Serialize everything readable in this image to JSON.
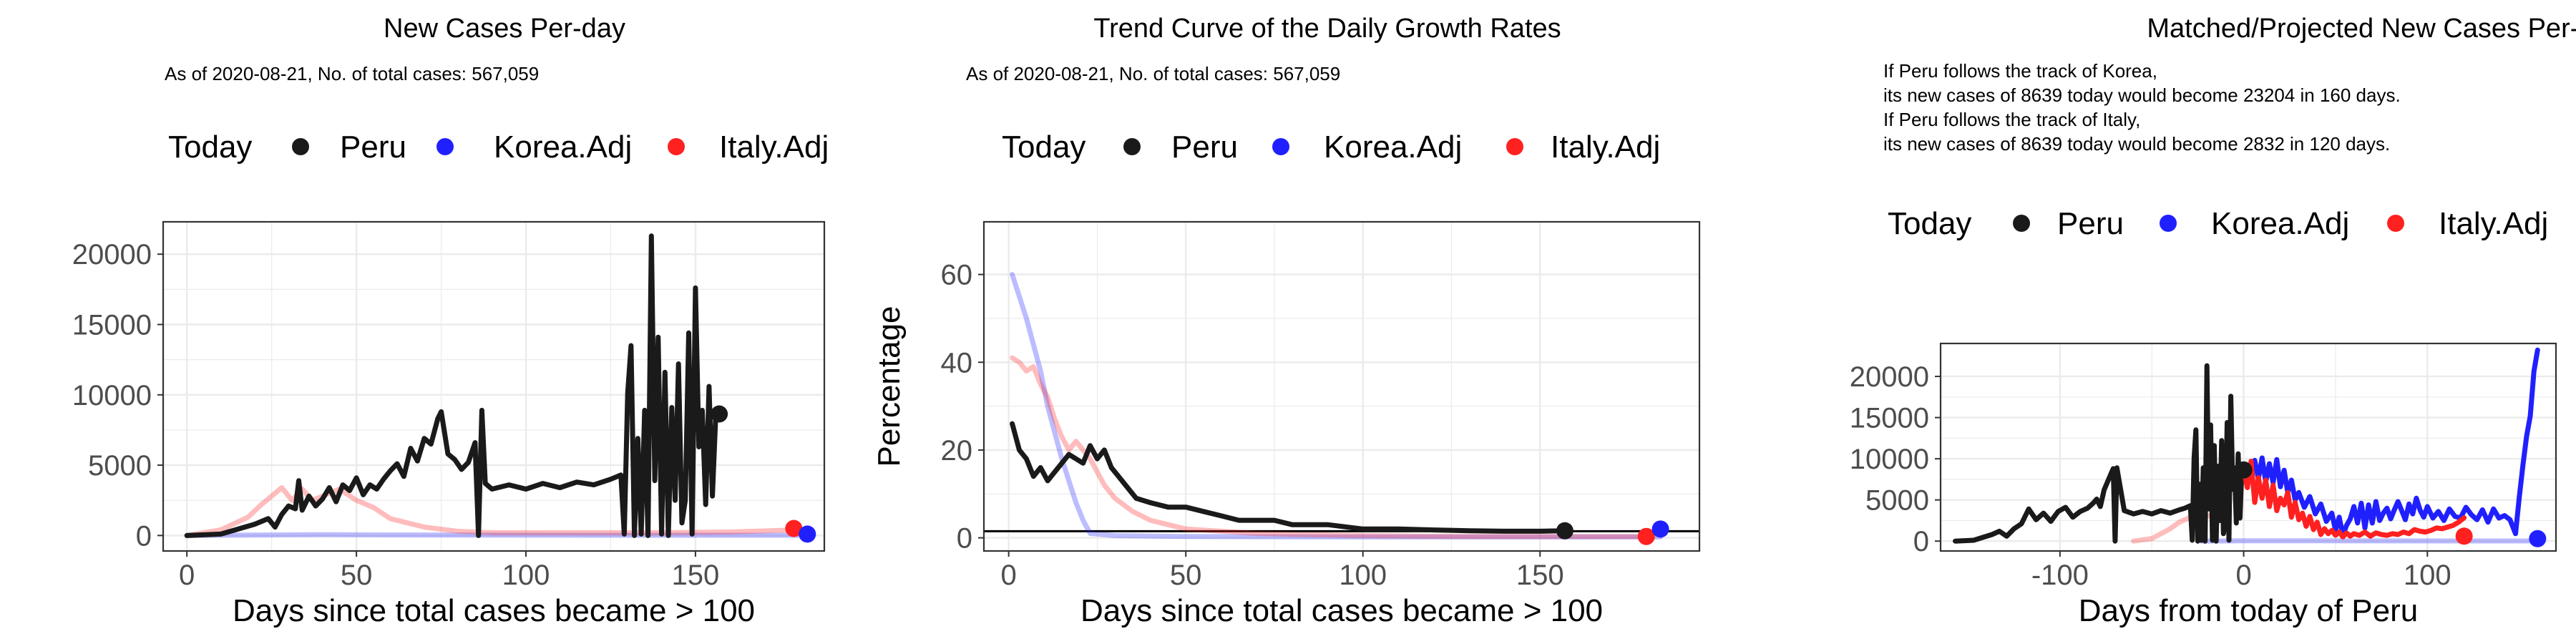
{
  "colors": {
    "peru": "#1a1a1a",
    "korea": "#2020ff",
    "italy": "#ff2020",
    "grid": "#ebebeb",
    "panel_border": "#333333"
  },
  "chart_data": [
    {
      "type": "line",
      "title": "New Cases Per-day",
      "subtitle": [
        "As of 2020-08-21, No. of total cases: 567,059"
      ],
      "legend": {
        "title": "Today",
        "entries": [
          "Peru",
          "Korea.Adj",
          "Italy.Adj"
        ],
        "placement": "top"
      },
      "xlabel": "Days since total cases became > 100",
      "ylabel": "",
      "xlim": [
        -7,
        188
      ],
      "ylim": [
        -1100,
        22300
      ],
      "xticks": [
        0,
        50,
        100,
        150
      ],
      "xtick_labels": [
        "0",
        "50",
        "100",
        "150"
      ],
      "yticks": [
        0,
        5000,
        10000,
        15000,
        20000
      ],
      "ytick_labels": [
        "0",
        "5000",
        "10000",
        "15000",
        "20000"
      ],
      "grid": true,
      "series": [
        {
          "name": "Korea.Adj",
          "color": "#2020ff",
          "opacity": 0.3,
          "x": [
            0,
            20,
            40,
            60,
            80,
            100,
            120,
            140,
            160,
            183
          ],
          "y": [
            0,
            30,
            60,
            40,
            30,
            25,
            20,
            20,
            20,
            20
          ]
        },
        {
          "name": "Italy.Adj",
          "color": "#ff2020",
          "opacity": 0.3,
          "x": [
            0,
            10,
            18,
            22,
            25,
            28,
            31,
            34,
            37,
            40,
            45,
            50,
            55,
            60,
            70,
            80,
            90,
            100,
            120,
            140,
            160,
            180
          ],
          "y": [
            0,
            400,
            1300,
            2200,
            2800,
            3400,
            2500,
            3300,
            2500,
            2800,
            3300,
            2500,
            2000,
            1200,
            600,
            300,
            200,
            200,
            200,
            200,
            250,
            400
          ]
        },
        {
          "name": "Peru",
          "color": "#1a1a1a",
          "opacity": 1,
          "x": [
            0,
            10,
            20,
            24,
            26,
            28,
            30,
            32,
            33,
            34,
            36,
            38,
            40,
            42,
            44,
            46,
            48,
            50,
            52,
            54,
            56,
            58,
            60,
            62,
            64,
            66,
            68,
            70,
            72,
            74,
            75,
            77,
            79,
            81,
            83,
            85,
            86,
            87,
            88,
            90,
            95,
            100,
            105,
            110,
            115,
            120,
            125,
            128,
            129,
            130,
            131,
            132,
            133,
            134,
            135,
            136,
            137,
            138,
            139,
            140,
            141,
            142,
            143,
            144,
            145,
            146,
            147,
            148,
            149,
            150,
            151,
            152,
            153,
            154,
            155,
            156,
            157
          ],
          "y": [
            0,
            100,
            800,
            1200,
            600,
            1500,
            2100,
            1900,
            3900,
            1800,
            2800,
            2100,
            2600,
            3400,
            2400,
            3600,
            3200,
            4100,
            2900,
            3600,
            3300,
            4000,
            4600,
            5100,
            4200,
            6200,
            5300,
            6900,
            6500,
            8300,
            8800,
            5800,
            5400,
            4700,
            5200,
            6600,
            0,
            8900,
            3700,
            3300,
            3600,
            3300,
            3700,
            3400,
            3800,
            3600,
            4000,
            4300,
            100,
            10100,
            13500,
            0,
            6900,
            100,
            8900,
            0,
            21300,
            3900,
            14100,
            100,
            11600,
            0,
            9100,
            2500,
            12200,
            900,
            2500,
            14400,
            100,
            17600,
            6300,
            8900,
            2200,
            10600,
            2800,
            8700,
            8639
          ]
        }
      ],
      "points": [
        {
          "name": "Peru",
          "x": 157,
          "y": 8639,
          "color": "#1a1a1a"
        },
        {
          "name": "Italy.Adj",
          "x": 179,
          "y": 500,
          "color": "#ff2020"
        },
        {
          "name": "Korea.Adj",
          "x": 183,
          "y": 100,
          "color": "#2020ff"
        }
      ]
    },
    {
      "type": "line",
      "title": "Trend Curve of the Daily Growth Rates",
      "subtitle": [
        "As of 2020-08-21, No. of total cases: 567,059"
      ],
      "legend": {
        "title": "Today",
        "entries": [
          "Peru",
          "Korea.Adj",
          "Italy.Adj"
        ],
        "placement": "top"
      },
      "xlabel": "Days since total cases became > 100",
      "ylabel": "Percentage",
      "xlim": [
        -7,
        195
      ],
      "ylim": [
        -3,
        72
      ],
      "xticks": [
        0,
        50,
        100,
        150
      ],
      "xtick_labels": [
        "0",
        "50",
        "100",
        "150"
      ],
      "yticks": [
        0,
        20,
        40,
        60
      ],
      "ytick_labels": [
        "0",
        "20",
        "40",
        "60"
      ],
      "grid": true,
      "hline": 1.5,
      "series": [
        {
          "name": "Korea.Adj",
          "color": "#2020ff",
          "opacity": 0.3,
          "x": [
            1,
            3,
            5,
            7,
            9,
            11,
            13,
            15,
            17,
            19,
            21,
            23,
            30,
            50,
            100,
            150,
            184
          ],
          "y": [
            60,
            55,
            50,
            44,
            38,
            30,
            24,
            18,
            13,
            8,
            4,
            1,
            0.5,
            0.3,
            0.2,
            0.2,
            0.2
          ]
        },
        {
          "name": "Italy.Adj",
          "color": "#ff2020",
          "opacity": 0.3,
          "x": [
            1,
            3,
            5,
            7,
            9,
            11,
            13,
            15,
            17,
            19,
            21,
            23,
            25,
            27,
            30,
            35,
            40,
            45,
            50,
            60,
            70,
            80,
            100,
            130,
            160,
            180
          ],
          "y": [
            41,
            40,
            38,
            39,
            35,
            32,
            27,
            23,
            20,
            22,
            20,
            18,
            15,
            12,
            9,
            6,
            4,
            3,
            2,
            1.5,
            1,
            0.8,
            0.5,
            0.3,
            0.3,
            0.3
          ]
        },
        {
          "name": "Peru",
          "color": "#1a1a1a",
          "opacity": 1,
          "x": [
            1,
            3,
            5,
            7,
            9,
            11,
            13,
            15,
            17,
            19,
            21,
            23,
            25,
            27,
            29,
            31,
            33,
            36,
            40,
            45,
            50,
            55,
            60,
            65,
            70,
            75,
            80,
            90,
            100,
            110,
            120,
            130,
            140,
            150,
            157
          ],
          "y": [
            26,
            20,
            18,
            14,
            16,
            13,
            15,
            17,
            19,
            18,
            17,
            21,
            18,
            20,
            16,
            14,
            12,
            9,
            8,
            7,
            7,
            6,
            5,
            4,
            4,
            4,
            3,
            3,
            2,
            2,
            1.8,
            1.6,
            1.5,
            1.5,
            1.6
          ]
        }
      ],
      "points": [
        {
          "name": "Peru",
          "x": 157,
          "y": 1.6,
          "color": "#1a1a1a"
        },
        {
          "name": "Italy.Adj",
          "x": 180,
          "y": 0.3,
          "color": "#ff2020"
        },
        {
          "name": "Korea.Adj",
          "x": 184,
          "y": 2,
          "color": "#2020ff"
        }
      ]
    },
    {
      "type": "line",
      "title": "Matched/Projected New Cases Per-day",
      "subtitle": [
        "If Peru follows the track of Korea,",
        "its new cases of 8639 today would become 23204 in 160 days.",
        "If Peru follows the track of Italy,",
        "its new cases of 8639 today would become 2832 in 120 days."
      ],
      "legend": {
        "title": "Today",
        "entries": [
          "Peru",
          "Korea.Adj",
          "Italy.Adj"
        ],
        "placement": "top"
      },
      "xlabel": "Days from today of Peru",
      "ylabel": "",
      "xlim": [
        -165,
        170
      ],
      "ylim": [
        -1200,
        24000
      ],
      "xticks": [
        -100,
        0,
        100
      ],
      "xtick_labels": [
        "-100",
        "0",
        "100"
      ],
      "yticks": [
        0,
        5000,
        10000,
        15000,
        20000
      ],
      "ytick_labels": [
        "0",
        "5000",
        "10000",
        "15000",
        "20000"
      ],
      "grid": true,
      "series": [
        {
          "name": "Korea.Adj",
          "color": "#2020ff",
          "opacity": 0.3,
          "x": [
            -23,
            0,
            40,
            80,
            120,
            160
          ],
          "y": [
            0,
            30,
            30,
            25,
            20,
            20
          ]
        },
        {
          "name": "Italy.Adj",
          "color": "#ff2020",
          "opacity": 0.3,
          "x": [
            -60,
            -50,
            -45,
            -40,
            -35,
            -30,
            -25,
            -20,
            -15,
            -10
          ],
          "y": [
            0,
            300,
            900,
            1500,
            2300,
            2800,
            3300,
            3000,
            3400,
            3000
          ]
        },
        {
          "name": "Peru",
          "color": "#1a1a1a",
          "opacity": 1,
          "x": [
            -157,
            -147,
            -137,
            -133,
            -129,
            -125,
            -121,
            -117,
            -113,
            -109,
            -105,
            -101,
            -97,
            -93,
            -89,
            -85,
            -82,
            -80,
            -78,
            -76,
            -72,
            -71,
            -70,
            -69,
            -65,
            -60,
            -55,
            -50,
            -45,
            -40,
            -35,
            -32,
            -29,
            -28,
            -27,
            -26,
            -25,
            -24,
            -23,
            -22,
            -21,
            -20,
            -19,
            -18,
            -17,
            -16,
            -15,
            -14,
            -13,
            -12,
            -11,
            -10,
            -9,
            -8,
            -7,
            -6,
            -5,
            -4,
            -3,
            -2,
            -1,
            0
          ],
          "y": [
            0,
            100,
            800,
            1200,
            600,
            1500,
            2100,
            3900,
            2600,
            3400,
            2400,
            3600,
            4100,
            2900,
            3600,
            4000,
            4600,
            5100,
            4200,
            6200,
            8300,
            8800,
            0,
            8900,
            3700,
            3300,
            3600,
            3300,
            3700,
            3400,
            3800,
            4000,
            4300,
            100,
            10100,
            13500,
            0,
            6900,
            100,
            8900,
            0,
            21300,
            3900,
            14100,
            100,
            11600,
            0,
            9100,
            2500,
            12200,
            900,
            2500,
            14400,
            100,
            17600,
            6300,
            8900,
            2200,
            10600,
            2800,
            8700,
            8639
          ]
        },
        {
          "name": "Korea.Adj",
          "color": "#2020ff",
          "opacity": 1,
          "x": [
            0,
            3,
            6,
            8,
            10,
            12,
            14,
            16,
            18,
            20,
            22,
            24,
            26,
            28,
            30,
            33,
            36,
            39,
            42,
            45,
            48,
            50,
            52,
            54,
            56,
            58,
            60,
            62,
            64,
            66,
            68,
            70,
            72,
            74,
            76,
            78,
            80,
            82,
            84,
            86,
            88,
            90,
            92,
            94,
            96,
            98,
            100,
            103,
            106,
            109,
            112,
            115,
            118,
            121,
            124,
            127,
            130,
            133,
            136,
            139,
            142,
            145,
            148,
            150,
            152,
            154,
            156,
            158,
            160
          ],
          "y": [
            8639,
            7200,
            9800,
            7600,
            10100,
            7200,
            9400,
            7100,
            9900,
            6600,
            8600,
            5900,
            7400,
            5000,
            5900,
            4100,
            5400,
            3300,
            4500,
            2400,
            3400,
            1300,
            2900,
            700,
            1900,
            2700,
            4200,
            2200,
            4600,
            1600,
            4400,
            2200,
            4800,
            2500,
            3400,
            4000,
            2700,
            3800,
            4800,
            3700,
            2600,
            4500,
            3300,
            5200,
            3800,
            2900,
            4200,
            2800,
            3600,
            2500,
            3900,
            3000,
            2800,
            4100,
            3200,
            2600,
            3800,
            2300,
            3900,
            2800,
            3100,
            2600,
            900,
            5300,
            9200,
            12700,
            15200,
            20600,
            23204
          ]
        },
        {
          "name": "Italy.Adj",
          "color": "#ff2020",
          "opacity": 1,
          "x": [
            0,
            2,
            4,
            6,
            8,
            10,
            12,
            14,
            16,
            18,
            20,
            22,
            24,
            26,
            28,
            30,
            32,
            34,
            36,
            38,
            40,
            42,
            44,
            46,
            48,
            50,
            52,
            54,
            56,
            58,
            60,
            63,
            66,
            69,
            72,
            75,
            78,
            81,
            84,
            87,
            90,
            93,
            96,
            99,
            102,
            105,
            108,
            111,
            114,
            117,
            120
          ],
          "y": [
            8639,
            6500,
            9700,
            4700,
            7700,
            5200,
            7400,
            4200,
            6800,
            3700,
            5200,
            4400,
            5900,
            2900,
            4700,
            2600,
            3400,
            1800,
            3000,
            1400,
            2300,
            800,
            1500,
            900,
            1300,
            700,
            1100,
            500,
            1000,
            600,
            900,
            700,
            1100,
            600,
            1000,
            800,
            700,
            900,
            800,
            1100,
            900,
            1400,
            1200,
            1100,
            1300,
            1600,
            1500,
            1700,
            1900,
            2300,
            2832
          ]
        }
      ],
      "points": [
        {
          "name": "Peru",
          "x": 0,
          "y": 8639,
          "color": "#1a1a1a"
        },
        {
          "name": "Italy.Adj",
          "x": 120,
          "y": 600,
          "color": "#ff2020"
        },
        {
          "name": "Korea.Adj",
          "x": 160,
          "y": 300,
          "color": "#2020ff"
        }
      ]
    }
  ]
}
